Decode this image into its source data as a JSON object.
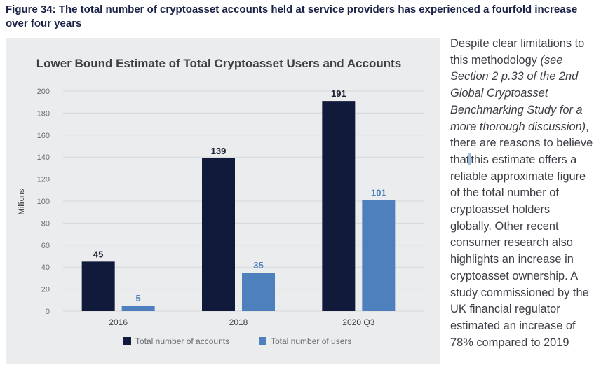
{
  "figure_title": "Figure 34: The total number of cryptoasset accounts held at service providers has experienced a fourfold increase over four years",
  "colors": {
    "accounts": "#121a3b",
    "users": "#4d80bd",
    "panel_bg": "#eaeced",
    "title_text": "#1b2247"
  },
  "chart_data": {
    "type": "bar",
    "title": "Lower Bound Estimate of Total Cryptoasset Users and Accounts",
    "xlabel": "",
    "ylabel": "Millions",
    "categories": [
      "2016",
      "2018",
      "2020 Q3"
    ],
    "ylim": [
      0,
      200
    ],
    "yticks": [
      0,
      20,
      40,
      60,
      80,
      100,
      120,
      140,
      160,
      180,
      200
    ],
    "grid": true,
    "legend_position": "bottom",
    "series": [
      {
        "name": "Total number of accounts",
        "values": [
          45,
          139,
          191
        ],
        "color": "#121a3b"
      },
      {
        "name": "Total number of users",
        "values": [
          5,
          35,
          101
        ],
        "color": "#4d80bd"
      }
    ]
  },
  "side_text": {
    "part1": "Despite clear limitations to this methodology",
    "part2": "(see Section 2 p.33 of the 2nd Global Cryptoasset Benchmarking Study for a more thorough discussion)",
    "part3": ", there are reasons to believe that",
    "part4": "this estimate offers a reliable approximate figure of the total number of cryptoasset holders globally. Other recent consumer research also highlights an increase in cryptoasset ownership. A study commissioned by the UK financial regulator estimated an increase of 78% compared to 2019"
  }
}
